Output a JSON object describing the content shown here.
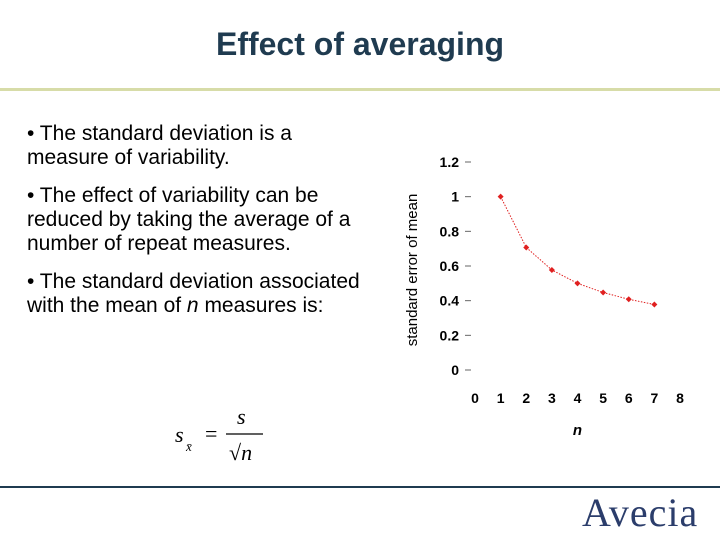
{
  "slide": {
    "title": "Effect of averaging",
    "bullets": [
      "• The standard deviation is a measure of variability.",
      "• The effect of variability can be reduced by taking the average of a number of repeat measures.",
      "• The standard deviation associated with the mean of "
    ],
    "bullet3_italic": "n",
    "bullet3_tail": " measures is:",
    "formula": {
      "lhs": "s",
      "lhs_subscript": "x̄",
      "equals": "=",
      "numerator": "s",
      "denominator": "√n"
    },
    "logo_text": "Avecia"
  },
  "chart_data": {
    "type": "line",
    "xlabel": "n",
    "ylabel": "standard error of mean",
    "xlim": [
      0,
      8
    ],
    "ylim": [
      0,
      1.2
    ],
    "x_ticks": [
      "0",
      "1",
      "2",
      "3",
      "4",
      "5",
      "6",
      "7",
      "8"
    ],
    "y_ticks": [
      "0",
      "0.2",
      "0.4",
      "0.6",
      "0.8",
      "1",
      "1.2"
    ],
    "series": [
      {
        "x": [
          1,
          2,
          3,
          4,
          5,
          6,
          7
        ],
        "y": [
          1.0,
          0.707,
          0.577,
          0.5,
          0.447,
          0.408,
          0.378
        ]
      }
    ],
    "color": "#e02020",
    "grid": false
  }
}
